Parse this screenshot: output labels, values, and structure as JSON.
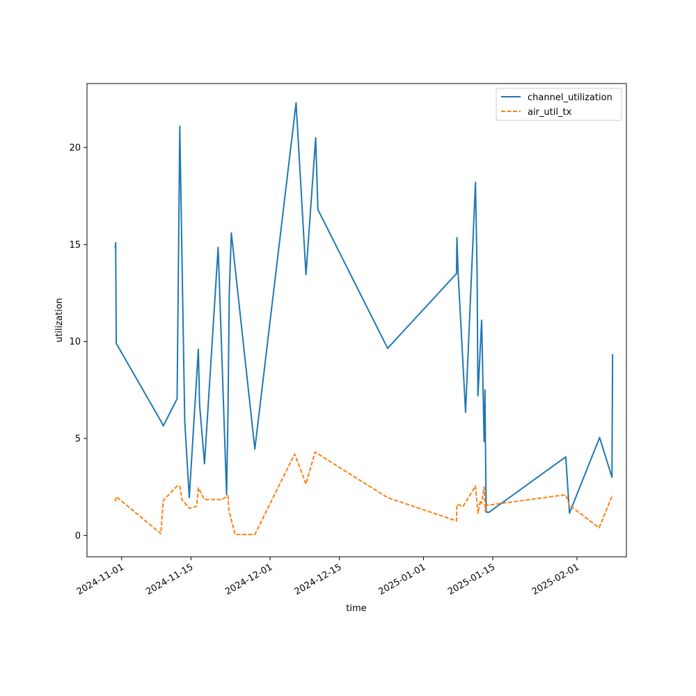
{
  "chart_data": {
    "type": "line",
    "title": "",
    "xlabel": "time",
    "ylabel": "utilization",
    "xlim": [
      "2024-10-25",
      "2025-02-11"
    ],
    "ylim": [
      -1.1,
      23.3
    ],
    "xticks": [
      "2024-11-01",
      "2024-11-15",
      "2024-12-01",
      "2024-12-15",
      "2025-01-01",
      "2025-01-15",
      "2025-02-01"
    ],
    "yticks": [
      0,
      5,
      10,
      15,
      20
    ],
    "grid": false,
    "legend": "top-right",
    "series": [
      {
        "name": "channel_utilization",
        "color": "#1f77b4",
        "dash": "solid",
        "points": [
          [
            "2024-10-30T17:00",
            14.8
          ],
          [
            "2024-10-30T19:00",
            15.1
          ],
          [
            "2024-10-30T22:00",
            9.9
          ],
          [
            "2024-11-08T22:00",
            5.9
          ],
          [
            "2024-11-09T10:00",
            5.65
          ],
          [
            "2024-11-12T05:00",
            7.05
          ],
          [
            "2024-11-12T18:00",
            21.1
          ],
          [
            "2024-11-13T18:00",
            5.9
          ],
          [
            "2024-11-14T16:00",
            1.95
          ],
          [
            "2024-11-16T12:00",
            9.6
          ],
          [
            "2024-11-16T18:00",
            6.75
          ],
          [
            "2024-11-17T18:00",
            3.7
          ],
          [
            "2024-11-20T12:00",
            14.85
          ],
          [
            "2024-11-22T05:00",
            2.1
          ],
          [
            "2024-11-22T12:00",
            6.5
          ],
          [
            "2024-11-22T18:00",
            12.5
          ],
          [
            "2024-11-23T04:00",
            15.6
          ],
          [
            "2024-11-27T22:00",
            4.45
          ],
          [
            "2024-12-06T06:00",
            22.3
          ],
          [
            "2024-12-08T06:00",
            13.45
          ],
          [
            "2024-12-10T05:00",
            20.5
          ],
          [
            "2024-12-10T16:00",
            16.8
          ],
          [
            "2024-12-24T18:00",
            9.65
          ],
          [
            "2025-01-07T16:00",
            13.5
          ],
          [
            "2025-01-07T18:00",
            15.35
          ],
          [
            "2025-01-08T00:00",
            13.5
          ],
          [
            "2025-01-09T12:00",
            6.35
          ],
          [
            "2025-01-11T12:00",
            18.2
          ],
          [
            "2025-01-11T20:00",
            13.5
          ],
          [
            "2025-01-12T00:00",
            7.2
          ],
          [
            "2025-01-12T18:00",
            11.1
          ],
          [
            "2025-01-13T06:00",
            4.85
          ],
          [
            "2025-01-13T08:00",
            5.5
          ],
          [
            "2025-01-13T10:00",
            7.5
          ],
          [
            "2025-01-13T12:00",
            5.2
          ],
          [
            "2025-01-13T16:00",
            1.2
          ],
          [
            "2025-01-14T06:00",
            1.2
          ],
          [
            "2025-01-29T18:00",
            4.05
          ],
          [
            "2025-01-30T12:00",
            1.15
          ],
          [
            "2025-02-05T14:00",
            5.05
          ],
          [
            "2025-02-08T02:00",
            3.0
          ],
          [
            "2025-02-08T05:00",
            9.35
          ]
        ]
      },
      {
        "name": "air_util_tx",
        "color": "#ff7f0e",
        "dash": "dashed",
        "points": [
          [
            "2024-10-30T17:00",
            1.75
          ],
          [
            "2024-10-30T22:00",
            2.0
          ],
          [
            "2024-11-08T22:00",
            0.1
          ],
          [
            "2024-11-09T10:00",
            1.8
          ],
          [
            "2024-11-12T05:00",
            2.55
          ],
          [
            "2024-11-12T18:00",
            2.55
          ],
          [
            "2024-11-13T04:00",
            1.85
          ],
          [
            "2024-11-14T16:00",
            1.4
          ],
          [
            "2024-11-16T03:00",
            1.5
          ],
          [
            "2024-11-16T12:00",
            2.45
          ],
          [
            "2024-11-17T18:00",
            1.85
          ],
          [
            "2024-11-21T06:00",
            1.85
          ],
          [
            "2024-11-22T12:00",
            2.05
          ],
          [
            "2024-11-22T16:00",
            1.3
          ],
          [
            "2024-11-23T22:00",
            0.05
          ],
          [
            "2024-11-27T22:00",
            0.05
          ],
          [
            "2024-12-05T23:00",
            4.2
          ],
          [
            "2024-12-08T06:00",
            2.65
          ],
          [
            "2024-12-10T02:00",
            4.3
          ],
          [
            "2024-12-24T18:00",
            1.95
          ],
          [
            "2025-01-07T16:00",
            0.75
          ],
          [
            "2025-01-07T18:00",
            1.6
          ],
          [
            "2025-01-09T00:00",
            1.5
          ],
          [
            "2025-01-11T12:00",
            2.55
          ],
          [
            "2025-01-12T00:00",
            1.15
          ],
          [
            "2025-01-12T12:00",
            1.8
          ],
          [
            "2025-01-12T18:00",
            1.65
          ],
          [
            "2025-01-13T06:00",
            2.5
          ],
          [
            "2025-01-13T12:00",
            1.25
          ],
          [
            "2025-01-13T16:00",
            1.55
          ],
          [
            "2025-01-29T18:00",
            2.1
          ],
          [
            "2025-01-30T12:00",
            1.55
          ],
          [
            "2025-02-05T12:00",
            0.4
          ],
          [
            "2025-02-08T05:00",
            2.1
          ]
        ]
      }
    ]
  }
}
